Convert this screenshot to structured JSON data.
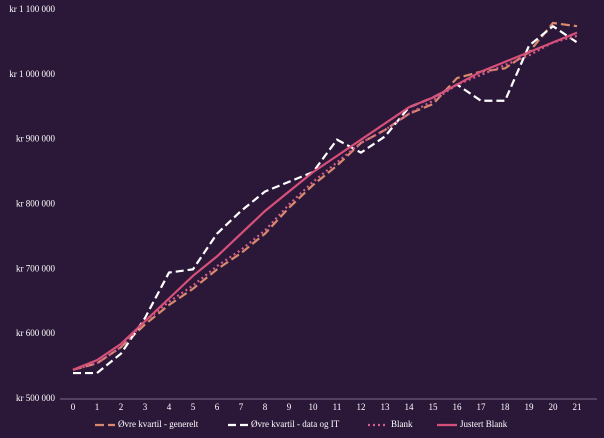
{
  "chart_data": {
    "type": "line",
    "x": [
      0,
      1,
      2,
      3,
      4,
      5,
      6,
      7,
      8,
      9,
      10,
      11,
      12,
      13,
      14,
      15,
      16,
      17,
      18,
      19,
      20,
      21
    ],
    "xlim": [
      -1,
      22
    ],
    "ylim": [
      500000,
      1100000
    ],
    "yticks": [
      {
        "value": 500000,
        "label": "kr 500 000"
      },
      {
        "value": 600000,
        "label": "kr 600 000"
      },
      {
        "value": 700000,
        "label": "kr 700 000"
      },
      {
        "value": 800000,
        "label": "kr 800 000"
      },
      {
        "value": 900000,
        "label": "kr 900 000"
      },
      {
        "value": 1000000,
        "label": "kr 1 000 000"
      },
      {
        "value": 1100000,
        "label": "kr 1 100 000"
      }
    ],
    "legend": "bottom",
    "series": [
      {
        "name": "Øvre kvartil - generelt",
        "color": "#d98a6c",
        "dash": "9 4",
        "values": [
          545000,
          555000,
          580000,
          615000,
          645000,
          670000,
          700000,
          725000,
          755000,
          795000,
          830000,
          860000,
          895000,
          915000,
          940000,
          955000,
          995000,
          1005000,
          1010000,
          1035000,
          1080000,
          1075000
        ]
      },
      {
        "name": "Øvre kvartil - data og IT",
        "color": "#ffffff",
        "dash": "8 4",
        "values": [
          540000,
          540000,
          570000,
          625000,
          695000,
          700000,
          755000,
          790000,
          820000,
          835000,
          850000,
          900000,
          880000,
          905000,
          950000,
          965000,
          985000,
          960000,
          960000,
          1045000,
          1075000,
          1050000
        ]
      },
      {
        "name": "Blank",
        "color": "#d45d8c",
        "dash": "2 3",
        "values": [
          545000,
          555000,
          580000,
          620000,
          650000,
          675000,
          705000,
          730000,
          760000,
          800000,
          835000,
          865000,
          895000,
          915000,
          940000,
          960000,
          985000,
          1000000,
          1015000,
          1030000,
          1050000,
          1060000
        ]
      },
      {
        "name": "Justert Blank",
        "color": "#d6507a",
        "dash": "",
        "values": [
          545000,
          560000,
          585000,
          620000,
          655000,
          690000,
          720000,
          755000,
          790000,
          820000,
          850000,
          875000,
          900000,
          925000,
          950000,
          965000,
          985000,
          1005000,
          1020000,
          1035000,
          1050000,
          1065000
        ]
      }
    ]
  }
}
